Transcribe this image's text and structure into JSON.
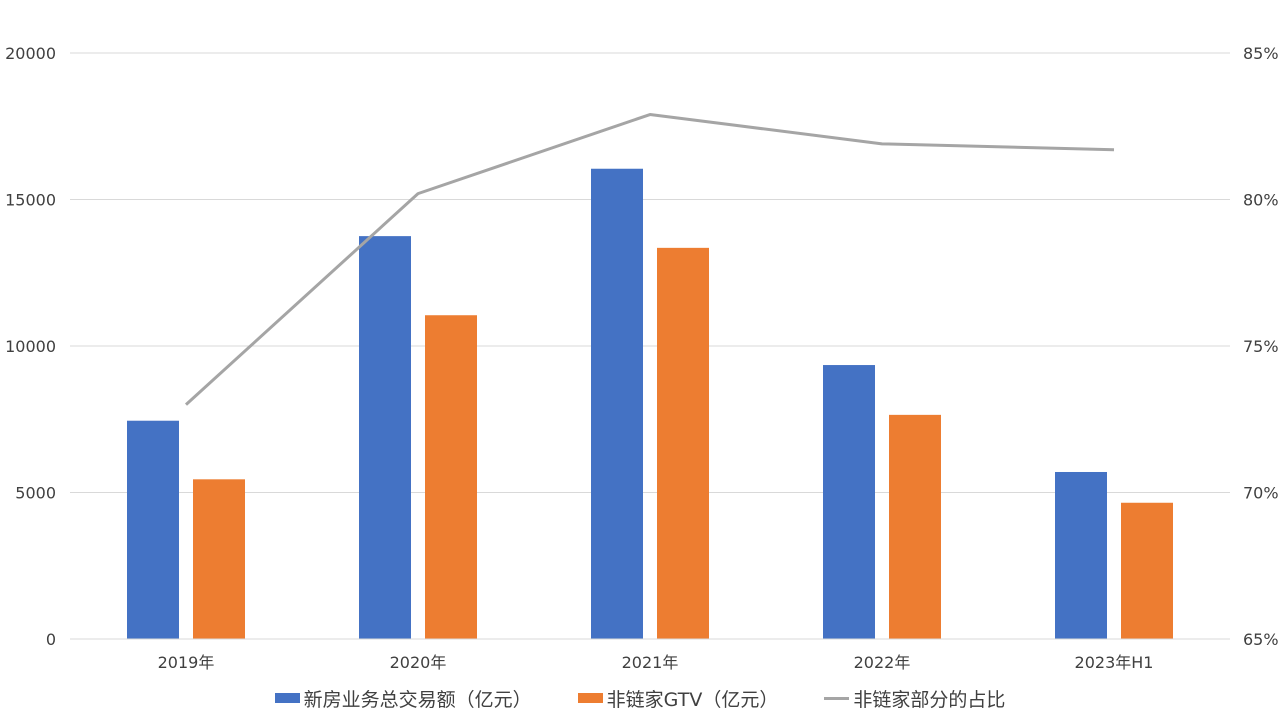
{
  "chart_data": {
    "type": "bar",
    "title": "",
    "xlabel": "",
    "ylabel": "",
    "categories": [
      "2019年",
      "2020年",
      "2021年",
      "2022年",
      "2023年H1"
    ],
    "ylim": [
      0,
      20000
    ],
    "y_ticks": [
      "0",
      "5000",
      "10000",
      "15000",
      "20000"
    ],
    "y2lim": [
      65,
      85
    ],
    "y2_ticks": [
      "65%",
      "70%",
      "75%",
      "80%",
      "85%"
    ],
    "grid": true,
    "legend_position": "bottom",
    "series": [
      {
        "name": "新房业务总交易额（亿元）",
        "type": "bar",
        "axis": "left",
        "color": "#4472C4",
        "values": [
          7450,
          13750,
          16050,
          9350,
          5700
        ]
      },
      {
        "name": "非链家GTV（亿元）",
        "type": "bar",
        "axis": "left",
        "color": "#ED7D31",
        "values": [
          5450,
          11050,
          13350,
          7650,
          4650
        ]
      },
      {
        "name": "非链家部分的占比",
        "type": "line",
        "axis": "right",
        "color": "#A5A5A5",
        "values": [
          73.0,
          80.2,
          82.9,
          81.9,
          81.7
        ]
      }
    ]
  }
}
